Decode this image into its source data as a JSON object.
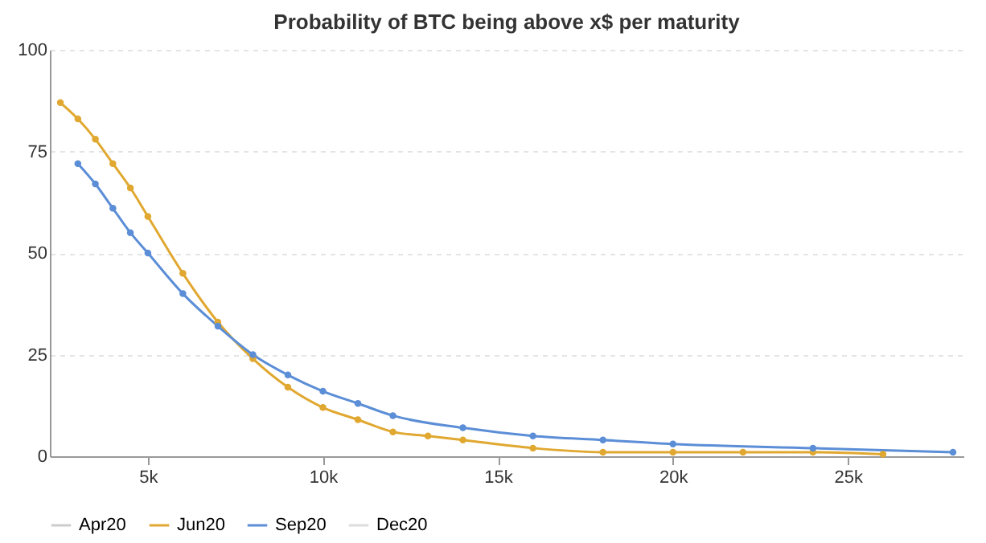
{
  "chart_data": {
    "type": "line",
    "title": "Probability of BTC being above x$ per maturity",
    "series": [
      {
        "name": "Apr20",
        "color": "#cccccc"
      },
      {
        "name": "Jun20",
        "color": "#e0a830",
        "x": [
          2500,
          3000,
          3500,
          4000,
          4500,
          5000,
          6000,
          7000,
          8000,
          9000,
          10000,
          11000,
          12000,
          13000,
          14000,
          16000,
          18000,
          20000,
          22000,
          24000,
          26000
        ],
        "values": [
          87,
          83,
          78,
          72,
          66,
          59,
          45,
          33,
          24,
          17,
          12,
          9,
          6,
          5,
          4,
          2,
          1,
          1,
          1,
          1,
          0.5
        ]
      },
      {
        "name": "Sep20",
        "color": "#5b8ed6",
        "x": [
          3000,
          3500,
          4000,
          4500,
          5000,
          6000,
          7000,
          8000,
          9000,
          10000,
          11000,
          12000,
          14000,
          16000,
          18000,
          20000,
          24000,
          28000
        ],
        "values": [
          72,
          67,
          61,
          55,
          50,
          40,
          32,
          25,
          20,
          16,
          13,
          10,
          7,
          5,
          4,
          3,
          2,
          1
        ]
      },
      {
        "name": "Dec20",
        "color": "#dddddd"
      }
    ],
    "xlim": [
      2200,
      28300
    ],
    "xticks": [
      {
        "value": 5000,
        "label": "5k"
      },
      {
        "value": 10000,
        "label": "10k"
      },
      {
        "value": 15000,
        "label": "15k"
      },
      {
        "value": 20000,
        "label": "20k"
      },
      {
        "value": 25000,
        "label": "25k"
      }
    ],
    "ylim": [
      0,
      100
    ],
    "yticks": [
      0,
      25,
      50,
      75,
      100
    ],
    "grid": "y",
    "legend": "bottom",
    "marker": "circle",
    "line_style": "solid"
  }
}
